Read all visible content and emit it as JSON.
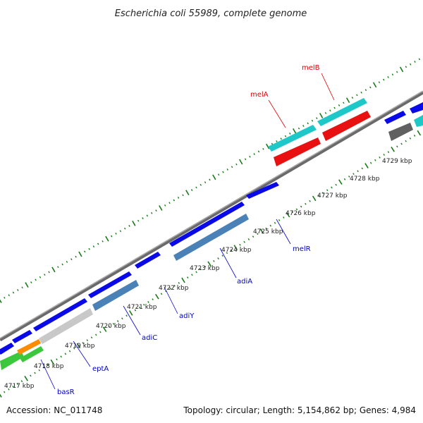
{
  "title": "Escherichia coli 55989, complete genome",
  "footer": {
    "accession": "Accession: NC_011748",
    "summary": "Topology: circular; Length: 5,154,862 bp; Genes: 4,984"
  },
  "colors": {
    "forward_gene": "#0a0ae8",
    "reverse_gene": "#4a82b8",
    "highlight_fwd": "#1ec8c8",
    "highlight_rev": "#e81010",
    "grey_gene": "#c8c8c8",
    "dark_grey_gene": "#606060",
    "green_gene": "#3cc83c",
    "orange_gene": "#ff8c00",
    "backbone": "#7a7a7a",
    "tick": "#1a7a1a",
    "label_blue": "#0000cc",
    "label_red": "#dd0000"
  },
  "scale_labels": [
    "4717 kbp",
    "4718 kbp",
    "4719 kbp",
    "4720 kbp",
    "4721 kbp",
    "4722 kbp",
    "4723 kbp",
    "4724 kbp",
    "4725 kbp",
    "4726 kbp",
    "4727 kbp",
    "4728 kbp",
    "4729 kbp"
  ],
  "gene_labels": {
    "melB": "melB",
    "melA": "melA",
    "melR": "melR",
    "adiA": "adiA",
    "adiY": "adiY",
    "adiC": "adiC",
    "eptA": "eptA",
    "basR": "basR"
  }
}
